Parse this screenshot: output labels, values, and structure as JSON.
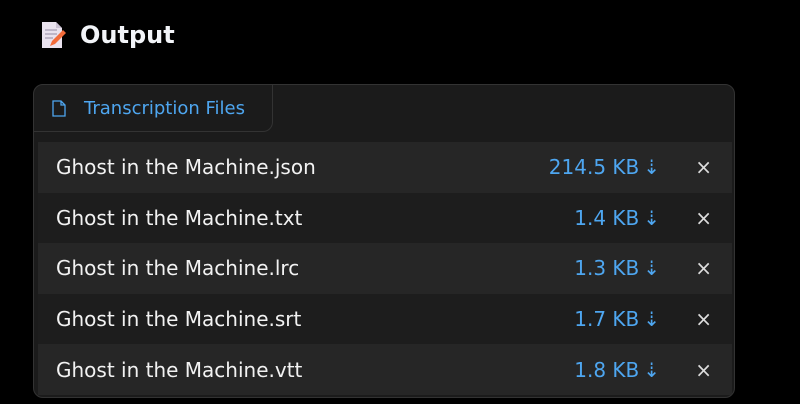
{
  "header": {
    "title": "Output",
    "icon": "memo-icon"
  },
  "tab": {
    "label": "Transcription Files",
    "icon": "file-icon"
  },
  "files": [
    {
      "name": "Ghost in the Machine.json",
      "size": "214.5 KB"
    },
    {
      "name": "Ghost in the Machine.txt",
      "size": "1.4 KB"
    },
    {
      "name": "Ghost in the Machine.lrc",
      "size": "1.3 KB"
    },
    {
      "name": "Ghost in the Machine.srt",
      "size": "1.7 KB"
    },
    {
      "name": "Ghost in the Machine.vtt",
      "size": "1.8 KB"
    }
  ],
  "download_glyph": "⇣",
  "remove_glyph": "×",
  "colors": {
    "accent": "#4ea6f0",
    "background": "#000000",
    "panel": "#1b1b1b"
  }
}
